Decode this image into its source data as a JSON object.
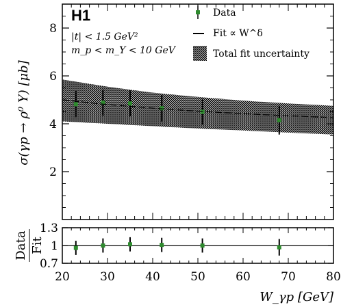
{
  "colors": {
    "frame": "#000000",
    "marker": "#2e8b2e",
    "band_fill": "#000000",
    "background": "#ffffff"
  },
  "chart_data": [
    {
      "type": "scatter",
      "panel": "main",
      "experiment_label": "H1",
      "cuts": [
        "|t| < 1.5 GeV²",
        "m_p < m_Y < 10 GeV"
      ],
      "ylabel": "σ(γp → ρ⁰ Y) [μb]",
      "ylim": [
        0,
        9
      ],
      "yticks": [
        2,
        4,
        6,
        8
      ],
      "xlim": [
        20,
        80
      ],
      "xticks": [
        20,
        30,
        40,
        50,
        60,
        70,
        80
      ],
      "legend": {
        "placement": "top-right",
        "entries": [
          "Data",
          "Fit ∝ W^δ",
          "Total fit uncertainty"
        ]
      },
      "series": [
        {
          "name": "Data",
          "x": [
            23,
            29,
            35,
            42,
            51,
            68
          ],
          "y": [
            4.82,
            4.88,
            4.85,
            4.65,
            4.5,
            4.15
          ],
          "yerr": [
            0.55,
            0.55,
            0.55,
            0.55,
            0.55,
            0.6
          ]
        },
        {
          "name": "Fit ∝ W^δ",
          "x": [
            20,
            30,
            40,
            50,
            60,
            70,
            80
          ],
          "y": [
            5.0,
            4.8,
            4.65,
            4.52,
            4.42,
            4.33,
            4.26
          ]
        },
        {
          "name": "Total fit uncertainty",
          "x": [
            20,
            30,
            40,
            50,
            60,
            70,
            80
          ],
          "y_low": [
            4.1,
            4.0,
            3.9,
            3.8,
            3.72,
            3.63,
            3.55
          ],
          "y_high": [
            5.85,
            5.55,
            5.3,
            5.12,
            4.97,
            4.85,
            4.75
          ]
        }
      ]
    },
    {
      "type": "scatter",
      "panel": "ratio",
      "ylabel": "Data / Fit",
      "ylabel_top": "Data",
      "ylabel_bottom": "Fit",
      "ylim": [
        0.7,
        1.3
      ],
      "yticks": [
        0.7,
        1,
        1.3
      ],
      "reference_line": 1,
      "xlabel": "W_γp [GeV]",
      "xlim": [
        20,
        80
      ],
      "xticks": [
        20,
        30,
        40,
        50,
        60,
        70,
        80
      ],
      "series": [
        {
          "name": "Data",
          "x": [
            23,
            29,
            35,
            42,
            51,
            68
          ],
          "y": [
            0.96,
            1.0,
            1.02,
            1.01,
            1.0,
            0.97
          ],
          "yerr": [
            0.12,
            0.12,
            0.12,
            0.12,
            0.12,
            0.14
          ]
        }
      ]
    }
  ]
}
